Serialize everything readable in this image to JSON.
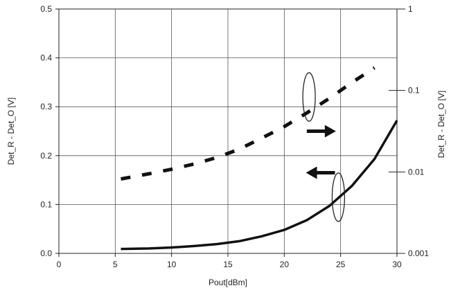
{
  "chart_data": {
    "type": "line",
    "xlabel": "Pout[dBm]",
    "ylabel": "Det_R - Det_O [V]",
    "y2label": "Det_R - Det_O [V]",
    "xlim": [
      0,
      30
    ],
    "ylim": [
      0,
      0.5
    ],
    "y2lim": [
      0.001,
      1
    ],
    "y2scale": "log",
    "x_ticks": [
      "0",
      "5",
      "10",
      "15",
      "20",
      "25",
      "30"
    ],
    "y_ticks": [
      "0.0",
      "0.1",
      "0.2",
      "0.3",
      "0.4",
      "0.5"
    ],
    "y2_ticks": [
      "0.001",
      "0.01",
      "0.1",
      "1"
    ],
    "grid": true,
    "series": [
      {
        "axis": "left",
        "style": "solid",
        "color": "#111111",
        "x": [
          5.5,
          8,
          10,
          12,
          14,
          16,
          18,
          20,
          22,
          24,
          26,
          28,
          30
        ],
        "y": [
          0.009,
          0.01,
          0.012,
          0.015,
          0.019,
          0.025,
          0.035,
          0.048,
          0.068,
          0.097,
          0.138,
          0.193,
          0.272
        ]
      },
      {
        "axis": "right",
        "style": "dashed",
        "color": "#111111",
        "x": [
          5.5,
          8,
          10,
          12,
          14,
          16,
          18,
          20,
          22,
          24,
          26,
          28
        ],
        "y": [
          0.0082,
          0.0095,
          0.0108,
          0.0125,
          0.015,
          0.019,
          0.026,
          0.036,
          0.053,
          0.08,
          0.125,
          0.19
        ]
      }
    ],
    "annotations": [
      {
        "type": "arrow",
        "direction": "right",
        "axis_ref": "right",
        "x": 22,
        "y": 0.25
      },
      {
        "type": "arrow",
        "direction": "left",
        "axis_ref": "left",
        "x": 24.5,
        "y": 0.165
      },
      {
        "type": "ellipse",
        "x": 22.2,
        "y": 0.32
      },
      {
        "type": "ellipse",
        "x": 24.8,
        "y": 0.115
      }
    ]
  }
}
